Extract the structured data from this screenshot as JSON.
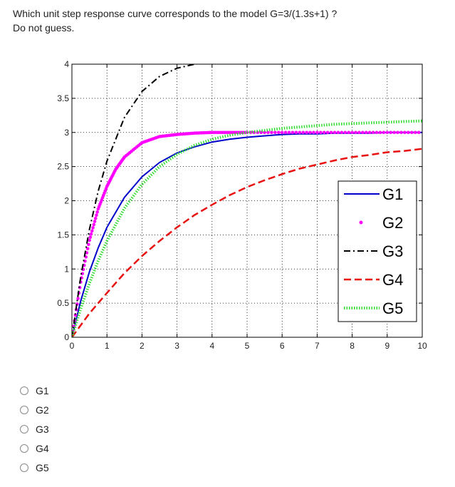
{
  "question": {
    "line1": "Which unit step response curve corresponds to the model G=3/(1.3s+1) ?",
    "line2": "Do not guess."
  },
  "options": [
    "G1",
    "G2",
    "G3",
    "G4",
    "G5"
  ],
  "chart_data": {
    "type": "line",
    "title": "",
    "xlabel": "",
    "ylabel": "",
    "xlim": [
      0,
      10
    ],
    "ylim": [
      0,
      4
    ],
    "xticks": [
      0,
      1,
      2,
      3,
      4,
      5,
      6,
      7,
      8,
      9,
      10
    ],
    "yticks": [
      0,
      0.5,
      1,
      1.5,
      2,
      2.5,
      3,
      3.5,
      4
    ],
    "grid": true,
    "legend_position": "lower-right",
    "series": [
      {
        "name": "G1",
        "color": "#0000cc",
        "style": "solid",
        "x": [
          0,
          0.25,
          0.5,
          0.75,
          1,
          1.5,
          2,
          2.5,
          3,
          3.5,
          4,
          4.5,
          5,
          5.5,
          6,
          6.5,
          7,
          7.5,
          8,
          8.5,
          9,
          9.5,
          10
        ],
        "y": [
          0,
          0.53,
          0.96,
          1.31,
          1.61,
          2.05,
          2.35,
          2.56,
          2.7,
          2.79,
          2.86,
          2.9,
          2.93,
          2.95,
          2.97,
          2.98,
          2.98,
          2.99,
          2.99,
          2.99,
          3.0,
          3.0,
          3.0
        ]
      },
      {
        "name": "G2",
        "color": "#ff00ff",
        "style": "dotted-markers",
        "x": [
          0,
          0.25,
          0.5,
          0.75,
          1,
          1.25,
          1.5,
          2,
          2.5,
          3,
          3.5,
          4,
          4.5,
          5,
          6,
          7,
          8,
          9,
          10
        ],
        "y": [
          0,
          0.81,
          1.42,
          1.88,
          2.21,
          2.46,
          2.64,
          2.85,
          2.94,
          2.97,
          2.99,
          3.0,
          3.0,
          3.0,
          3.0,
          3.0,
          3.0,
          3.0,
          3.0
        ]
      },
      {
        "name": "G3",
        "color": "#000000",
        "style": "dashdot",
        "x": [
          0,
          0.25,
          0.5,
          0.75,
          1,
          1.5,
          2,
          2.5,
          3,
          3.5,
          4,
          4.5,
          5,
          5.5,
          6,
          7,
          8,
          9,
          10
        ],
        "y": [
          0,
          0.88,
          1.58,
          2.14,
          2.58,
          3.22,
          3.6,
          3.82,
          3.94,
          4.0,
          4.03,
          4.05,
          4.06,
          4.07,
          4.07,
          4.08,
          4.08,
          4.08,
          4.08
        ]
      },
      {
        "name": "G4",
        "color": "#e81010",
        "style": "dashed",
        "x": [
          0,
          0.5,
          1,
          1.5,
          2,
          2.5,
          3,
          3.5,
          4,
          4.5,
          5,
          5.5,
          6,
          6.5,
          7,
          7.5,
          8,
          8.5,
          9,
          9.5,
          10
        ],
        "y": [
          0,
          0.35,
          0.65,
          0.94,
          1.19,
          1.41,
          1.61,
          1.79,
          1.94,
          2.08,
          2.2,
          2.3,
          2.39,
          2.47,
          2.53,
          2.59,
          2.64,
          2.67,
          2.71,
          2.73,
          2.76
        ]
      },
      {
        "name": "G5",
        "color": "#33dd33",
        "style": "dotted",
        "x": [
          0,
          0.25,
          0.5,
          0.75,
          1,
          1.5,
          2,
          2.5,
          3,
          3.5,
          4,
          4.5,
          5,
          5.5,
          6,
          6.5,
          7,
          7.5,
          8,
          8.5,
          9,
          9.5,
          10
        ],
        "y": [
          0,
          0.42,
          0.79,
          1.12,
          1.41,
          1.89,
          2.24,
          2.5,
          2.68,
          2.81,
          2.9,
          2.96,
          3.0,
          3.03,
          3.06,
          3.08,
          3.1,
          3.12,
          3.13,
          3.14,
          3.15,
          3.16,
          3.17
        ]
      }
    ]
  }
}
